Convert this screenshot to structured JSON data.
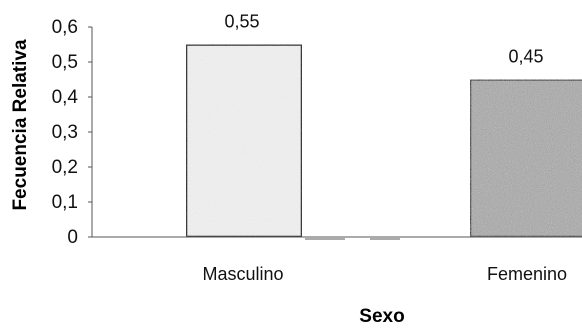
{
  "chart_data": {
    "type": "bar",
    "categories": [
      "Masculino",
      "Femenino"
    ],
    "values": [
      0.55,
      0.45
    ],
    "value_labels": [
      "0,55",
      "0,45"
    ],
    "xlabel": "Sexo",
    "ylabel": "Fecuencia Relativa",
    "ylim": [
      0,
      0.6
    ],
    "yticks": [
      {
        "value": 0,
        "label": "0"
      },
      {
        "value": 0.1,
        "label": "0,1"
      },
      {
        "value": 0.2,
        "label": "0,2"
      },
      {
        "value": 0.3,
        "label": "0,3"
      },
      {
        "value": 0.4,
        "label": "0,4"
      },
      {
        "value": 0.5,
        "label": "0,5"
      },
      {
        "value": 0.6,
        "label": "0,6"
      }
    ],
    "grid": false,
    "legend": "none",
    "colors": {
      "bar_1": "#f1f1f1",
      "bar_2": "#a9a9a9",
      "outline": "#111111",
      "axis": "#555555"
    }
  }
}
